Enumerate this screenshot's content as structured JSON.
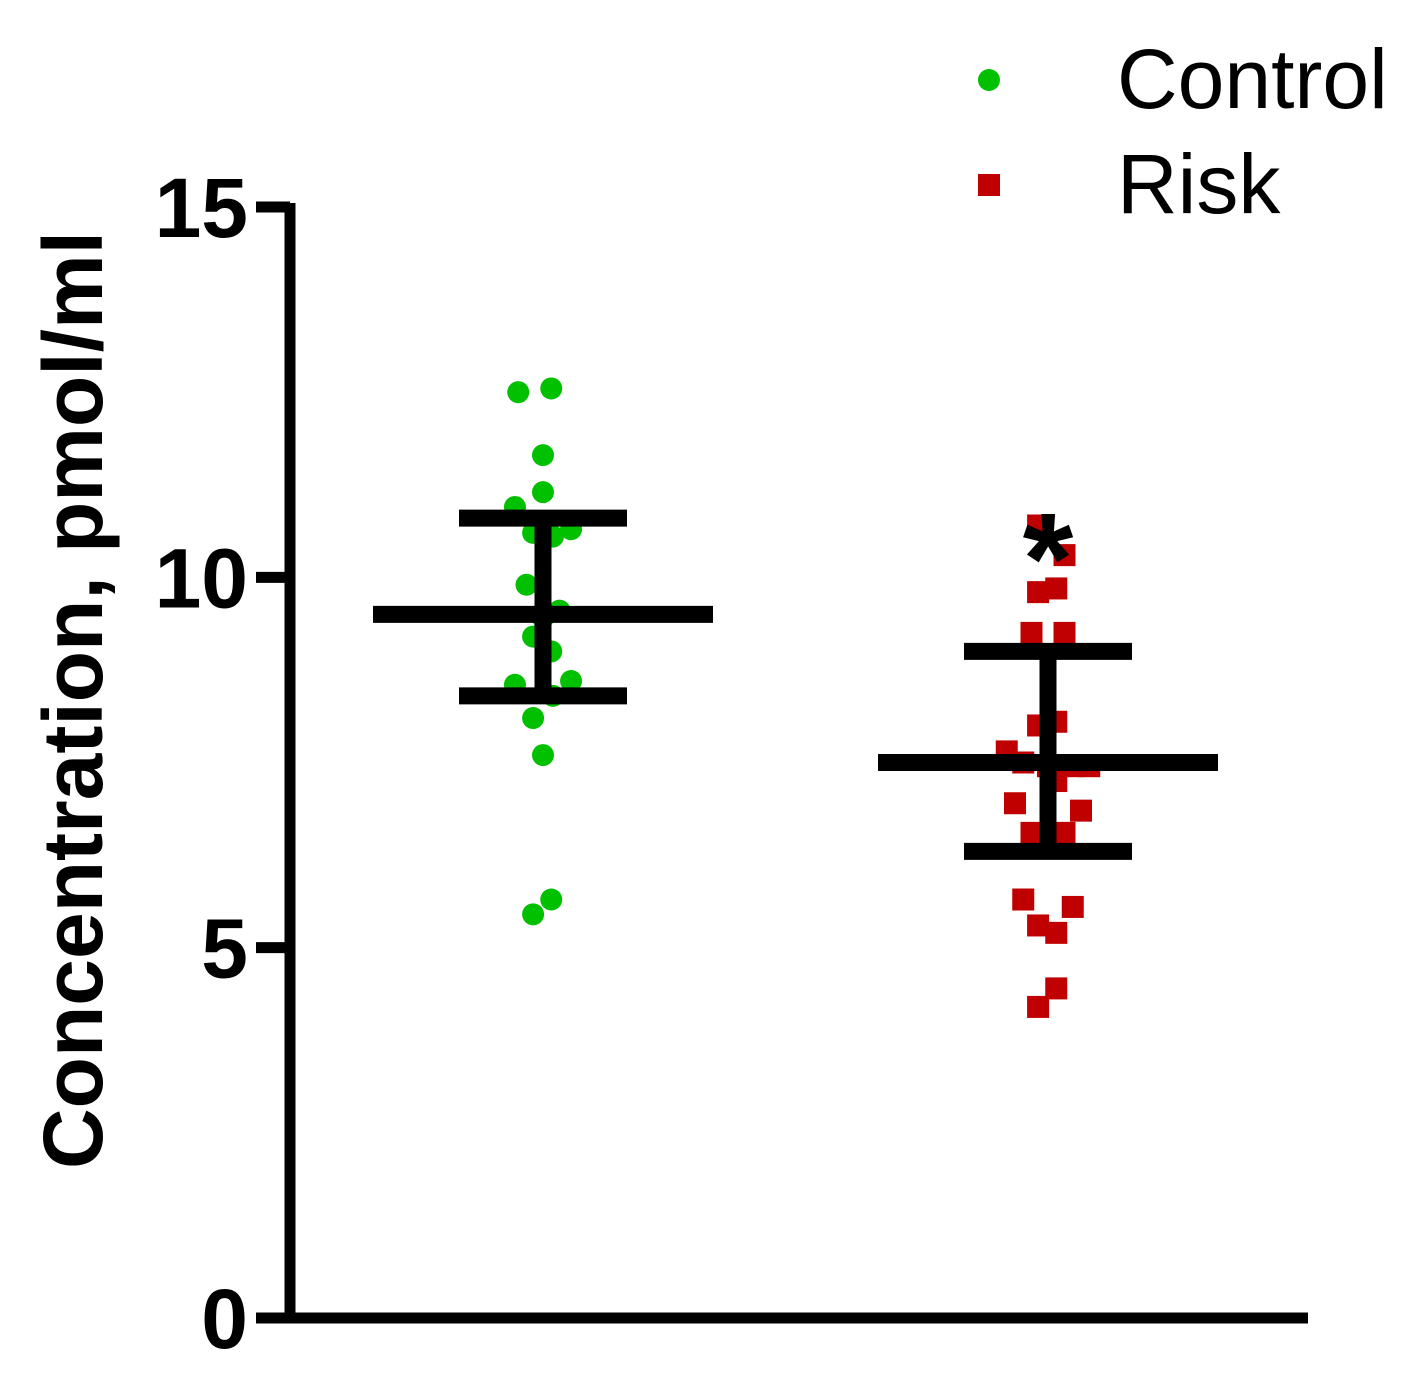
{
  "chart_data": {
    "type": "scatter",
    "title": "",
    "xlabel": "",
    "ylabel": "Concentration, pmol/ml",
    "ylim": [
      0,
      15
    ],
    "yticks": [
      0,
      5,
      10,
      15
    ],
    "grid": false,
    "legend_position": "top-right",
    "series": [
      {
        "name": "Control",
        "marker": "circle",
        "color": "#00c000",
        "points": [
          {
            "x": -0.15,
            "y": 12.5
          },
          {
            "x": 0.05,
            "y": 12.55
          },
          {
            "x": 0.0,
            "y": 11.65
          },
          {
            "x": 0.0,
            "y": 11.15
          },
          {
            "x": -0.17,
            "y": 10.95
          },
          {
            "x": -0.06,
            "y": 10.6
          },
          {
            "x": 0.06,
            "y": 10.55
          },
          {
            "x": 0.17,
            "y": 10.65
          },
          {
            "x": -0.1,
            "y": 9.9
          },
          {
            "x": 0.1,
            "y": 9.55
          },
          {
            "x": 0.0,
            "y": 9.45
          },
          {
            "x": -0.06,
            "y": 9.2
          },
          {
            "x": 0.05,
            "y": 9.0
          },
          {
            "x": -0.17,
            "y": 8.55
          },
          {
            "x": 0.06,
            "y": 8.4
          },
          {
            "x": 0.17,
            "y": 8.6
          },
          {
            "x": -0.06,
            "y": 8.1
          },
          {
            "x": 0.0,
            "y": 7.6
          },
          {
            "x": 0.05,
            "y": 5.65
          },
          {
            "x": -0.06,
            "y": 5.45
          }
        ],
        "mean": 9.5,
        "error_low": 8.4,
        "error_high": 10.8
      },
      {
        "name": "Risk",
        "marker": "square",
        "color": "#c00000",
        "points": [
          {
            "x": -0.06,
            "y": 10.7
          },
          {
            "x": 0.1,
            "y": 10.3
          },
          {
            "x": -0.06,
            "y": 9.8
          },
          {
            "x": 0.05,
            "y": 9.85
          },
          {
            "x": -0.1,
            "y": 9.25
          },
          {
            "x": 0.1,
            "y": 9.25
          },
          {
            "x": -0.06,
            "y": 8.0
          },
          {
            "x": 0.05,
            "y": 8.05
          },
          {
            "x": -0.25,
            "y": 7.65
          },
          {
            "x": -0.15,
            "y": 7.5
          },
          {
            "x": 0.0,
            "y": 7.45
          },
          {
            "x": 0.15,
            "y": 7.45
          },
          {
            "x": 0.25,
            "y": 7.45
          },
          {
            "x": -0.2,
            "y": 6.95
          },
          {
            "x": 0.05,
            "y": 7.25
          },
          {
            "x": 0.2,
            "y": 6.85
          },
          {
            "x": -0.1,
            "y": 6.55
          },
          {
            "x": 0.1,
            "y": 6.55
          },
          {
            "x": -0.15,
            "y": 5.65
          },
          {
            "x": 0.15,
            "y": 5.55
          },
          {
            "x": -0.06,
            "y": 5.3
          },
          {
            "x": 0.05,
            "y": 5.2
          },
          {
            "x": 0.05,
            "y": 4.45
          },
          {
            "x": -0.06,
            "y": 4.2
          }
        ],
        "mean": 7.5,
        "error_low": 6.3,
        "error_high": 9.0,
        "annotation": "*"
      }
    ]
  }
}
